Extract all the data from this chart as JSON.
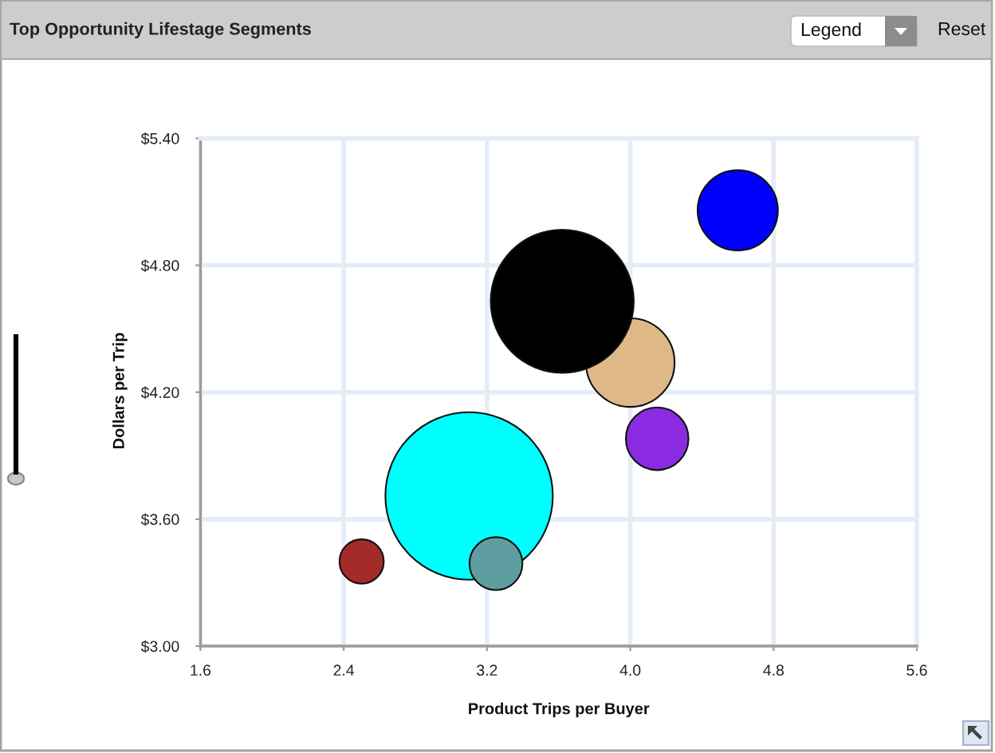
{
  "chart_data": {
    "type": "bubble",
    "title": "Top Opportunity Lifestage Segments",
    "xlabel": "Product Trips per Buyer",
    "ylabel": "Dollars per Trip",
    "x": [
      4.0,
      3.62,
      4.6,
      4.15,
      3.1,
      2.5,
      3.25
    ],
    "values": [
      4.34,
      4.63,
      5.06,
      3.98,
      3.71,
      3.4,
      3.39
    ],
    "sizes": [
      0.28,
      0.73,
      0.23,
      0.14,
      1,
      0.07,
      0.1
    ],
    "colors": [
      "#deb887",
      "#000000",
      "#0000ff",
      "#8a2be2",
      "#00ffff",
      "#a52a2a",
      "#5f9ea0"
    ],
    "marker": "circle",
    "xlim": [
      1.6,
      5.6
    ],
    "xticks": [
      1.6,
      2.4,
      3.2,
      {
        "value": 4,
        "label": "4.0"
      },
      4.8,
      5.6
    ],
    "ylim": [
      3.0,
      5.4
    ],
    "yticks": [
      {
        "value": 3.0,
        "label": "$3.00"
      },
      {
        "value": 3.6,
        "label": "$3.60"
      },
      {
        "value": 4.2,
        "label": "$4.20"
      },
      {
        "value": 4.8,
        "label": "$4.80"
      },
      {
        "value": 5.4,
        "label": "$5.40"
      }
    ],
    "grid": true,
    "annotations": [
      "Legend",
      "Reset"
    ]
  }
}
